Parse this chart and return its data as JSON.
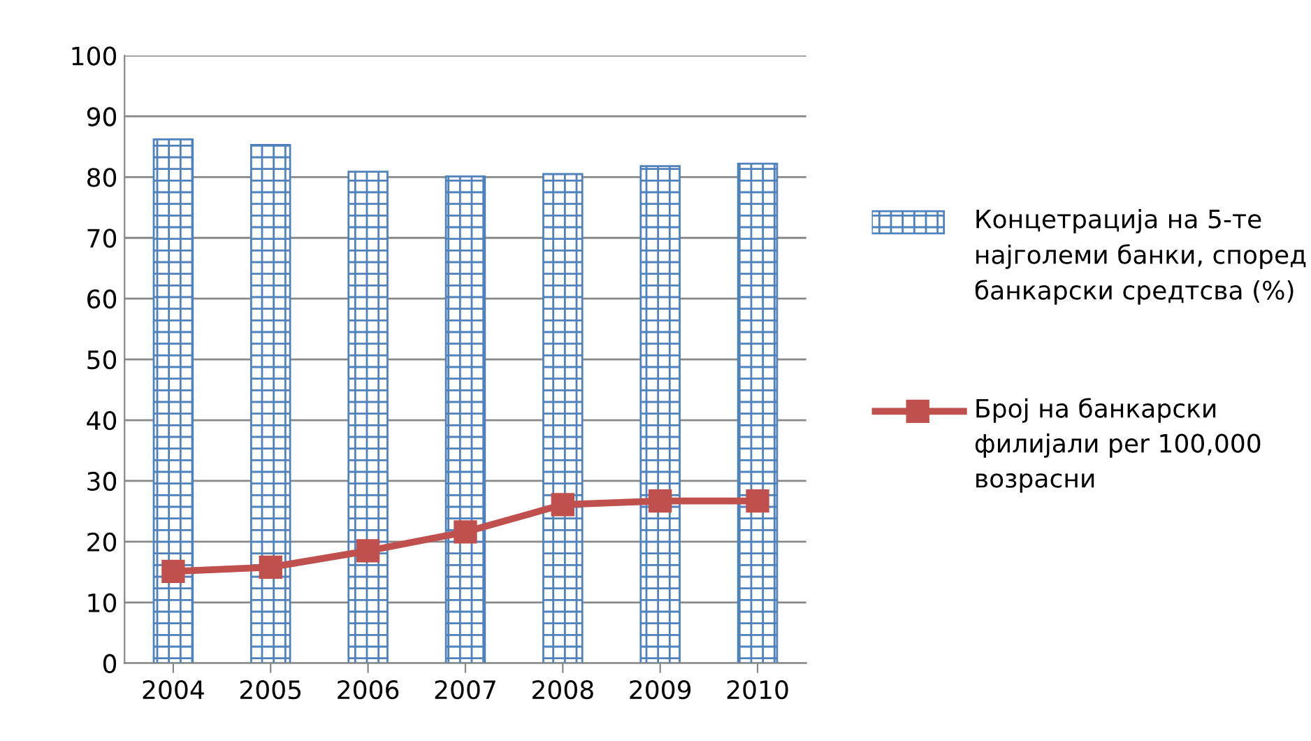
{
  "chart_data": {
    "type": "bar",
    "categories": [
      "2004",
      "2005",
      "2006",
      "2007",
      "2008",
      "2009",
      "2010"
    ],
    "series": [
      {
        "name": "Концетрација на 5-те најголеми банки, според банкарски средтсва (%)",
        "color": "#4f81bd",
        "values": [
          86.2,
          85.3,
          80.9,
          80.1,
          80.5,
          81.8,
          82.2
        ]
      },
      {
        "name": "Број на банкарски филијали per 100,000 возрасни",
        "type": "line",
        "color": "#c0504d",
        "marker": "square",
        "values": [
          15.1,
          15.8,
          18.5,
          21.6,
          26.1,
          26.7,
          26.7
        ]
      }
    ],
    "ylim": [
      0,
      100
    ],
    "yticks": [
      0,
      10,
      20,
      30,
      40,
      50,
      60,
      70,
      80,
      90,
      100
    ],
    "grid": "y",
    "legend": "right"
  }
}
